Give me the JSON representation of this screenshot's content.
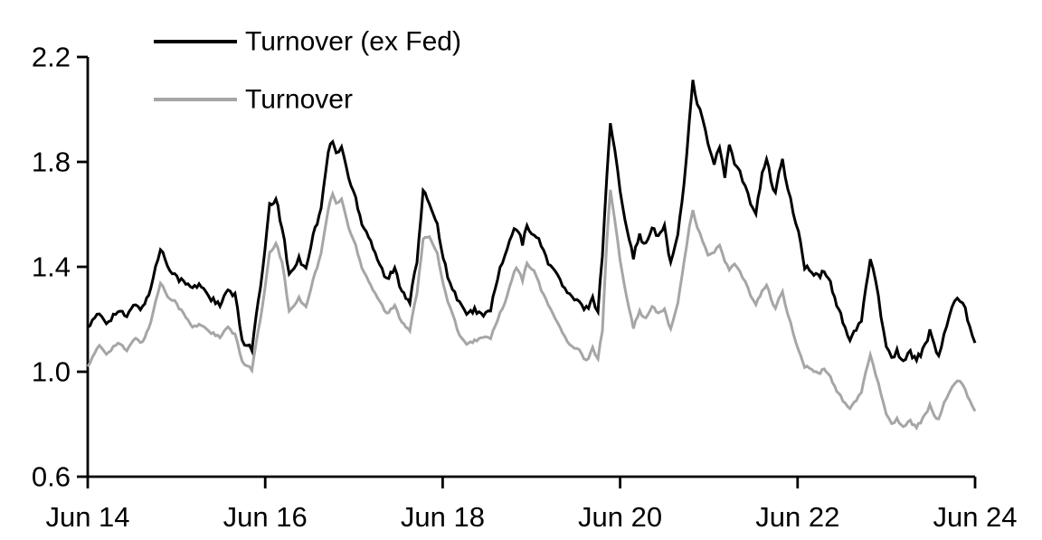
{
  "chart_data": {
    "type": "line",
    "title": "",
    "background_color": "#ffffff",
    "axis_color": "#000000",
    "grid": false,
    "legend_position": "top-left-inside",
    "legend": [
      {
        "label": "Turnover (ex Fed)",
        "color": "#000000"
      },
      {
        "label": "Turnover",
        "color": "#a6a6a6"
      }
    ],
    "x_axis": {
      "range": [
        2014.45,
        2024.45
      ],
      "tick_positions": [
        2014.45,
        2016.45,
        2018.45,
        2020.45,
        2022.45,
        2024.45
      ],
      "tick_labels": [
        "Jun 14",
        "Jun 16",
        "Jun 18",
        "Jun 20",
        "Jun 22",
        "Jun 24"
      ]
    },
    "y_axis": {
      "range": [
        0.6,
        2.2
      ],
      "tick_values": [
        0.6,
        1.0,
        1.4,
        1.8,
        2.2
      ],
      "tick_labels": [
        "0.6",
        "1.0",
        "1.4",
        "1.8",
        "2.2"
      ]
    },
    "x": [
      2014.45,
      2014.58,
      2014.66,
      2014.79,
      2014.89,
      2014.99,
      2015.07,
      2015.16,
      2015.27,
      2015.35,
      2015.43,
      2015.53,
      2015.63,
      2015.73,
      2015.84,
      2015.94,
      2016.03,
      2016.11,
      2016.19,
      2016.3,
      2016.42,
      2016.5,
      2016.57,
      2016.64,
      2016.72,
      2016.83,
      2016.91,
      2016.99,
      2017.08,
      2017.16,
      2017.21,
      2017.25,
      2017.31,
      2017.39,
      2017.47,
      2017.54,
      2017.64,
      2017.74,
      2017.82,
      2017.91,
      2017.99,
      2018.08,
      2018.16,
      2018.23,
      2018.3,
      2018.39,
      2018.48,
      2018.56,
      2018.64,
      2018.72,
      2018.81,
      2018.91,
      2018.99,
      2019.07,
      2019.15,
      2019.23,
      2019.28,
      2019.35,
      2019.4,
      2019.48,
      2019.56,
      2019.64,
      2019.72,
      2019.8,
      2019.88,
      2019.99,
      2020.07,
      2020.14,
      2020.2,
      2020.25,
      2020.3,
      2020.34,
      2020.39,
      2020.45,
      2020.53,
      2020.6,
      2020.67,
      2020.74,
      2020.81,
      2020.88,
      2020.95,
      2021.02,
      2021.1,
      2021.17,
      2021.23,
      2021.27,
      2021.32,
      2021.38,
      2021.44,
      2021.51,
      2021.57,
      2021.63,
      2021.68,
      2021.74,
      2021.8,
      2021.86,
      2021.92,
      2021.98,
      2022.05,
      2022.1,
      2022.15,
      2022.2,
      2022.24,
      2022.28,
      2022.34,
      2022.4,
      2022.46,
      2022.53,
      2022.61,
      2022.68,
      2022.75,
      2022.82,
      2022.89,
      2022.96,
      2023.04,
      2023.11,
      2023.17,
      2023.22,
      2023.27,
      2023.33,
      2023.39,
      2023.45,
      2023.51,
      2023.57,
      2023.64,
      2023.72,
      2023.79,
      2023.86,
      2023.94,
      2023.99,
      2024.04,
      2024.1,
      2024.16,
      2024.22,
      2024.28,
      2024.34,
      2024.39,
      2024.45
    ],
    "series": [
      {
        "name": "Turnover (ex Fed)",
        "color": "#000000",
        "values": [
          1.17,
          1.22,
          1.19,
          1.23,
          1.21,
          1.26,
          1.24,
          1.32,
          1.47,
          1.41,
          1.37,
          1.34,
          1.32,
          1.33,
          1.28,
          1.25,
          1.31,
          1.29,
          1.12,
          1.09,
          1.38,
          1.63,
          1.66,
          1.55,
          1.37,
          1.43,
          1.4,
          1.52,
          1.62,
          1.84,
          1.88,
          1.83,
          1.86,
          1.74,
          1.66,
          1.57,
          1.5,
          1.41,
          1.35,
          1.39,
          1.31,
          1.27,
          1.42,
          1.68,
          1.65,
          1.56,
          1.4,
          1.31,
          1.27,
          1.21,
          1.24,
          1.21,
          1.24,
          1.36,
          1.44,
          1.52,
          1.55,
          1.49,
          1.55,
          1.53,
          1.48,
          1.42,
          1.38,
          1.33,
          1.29,
          1.26,
          1.24,
          1.28,
          1.23,
          1.45,
          1.75,
          1.94,
          1.85,
          1.68,
          1.55,
          1.44,
          1.52,
          1.48,
          1.55,
          1.51,
          1.56,
          1.41,
          1.52,
          1.72,
          1.95,
          2.12,
          2.02,
          1.97,
          1.86,
          1.8,
          1.85,
          1.74,
          1.87,
          1.79,
          1.76,
          1.7,
          1.64,
          1.61,
          1.76,
          1.81,
          1.73,
          1.68,
          1.76,
          1.8,
          1.7,
          1.61,
          1.53,
          1.4,
          1.38,
          1.36,
          1.38,
          1.34,
          1.26,
          1.19,
          1.12,
          1.16,
          1.19,
          1.32,
          1.44,
          1.35,
          1.22,
          1.1,
          1.05,
          1.08,
          1.04,
          1.07,
          1.05,
          1.08,
          1.15,
          1.1,
          1.06,
          1.14,
          1.21,
          1.26,
          1.28,
          1.24,
          1.17,
          1.11
        ]
      },
      {
        "name": "Turnover",
        "color": "#a6a6a6",
        "values": [
          1.02,
          1.1,
          1.07,
          1.11,
          1.08,
          1.13,
          1.11,
          1.19,
          1.34,
          1.29,
          1.27,
          1.22,
          1.17,
          1.18,
          1.15,
          1.13,
          1.17,
          1.14,
          1.04,
          1.01,
          1.25,
          1.45,
          1.49,
          1.42,
          1.23,
          1.28,
          1.25,
          1.35,
          1.45,
          1.62,
          1.68,
          1.64,
          1.66,
          1.55,
          1.48,
          1.4,
          1.33,
          1.27,
          1.22,
          1.25,
          1.19,
          1.16,
          1.3,
          1.5,
          1.52,
          1.45,
          1.3,
          1.22,
          1.14,
          1.1,
          1.12,
          1.13,
          1.13,
          1.2,
          1.26,
          1.35,
          1.4,
          1.35,
          1.41,
          1.39,
          1.31,
          1.26,
          1.2,
          1.15,
          1.1,
          1.08,
          1.04,
          1.09,
          1.05,
          1.16,
          1.5,
          1.69,
          1.58,
          1.42,
          1.28,
          1.17,
          1.23,
          1.2,
          1.25,
          1.22,
          1.24,
          1.16,
          1.26,
          1.42,
          1.55,
          1.62,
          1.55,
          1.5,
          1.44,
          1.46,
          1.48,
          1.42,
          1.39,
          1.41,
          1.38,
          1.34,
          1.29,
          1.26,
          1.31,
          1.33,
          1.28,
          1.24,
          1.28,
          1.3,
          1.22,
          1.15,
          1.08,
          1.02,
          1.01,
          0.99,
          1.01,
          0.98,
          0.93,
          0.89,
          0.86,
          0.89,
          0.92,
          1.0,
          1.07,
          0.99,
          0.92,
          0.84,
          0.8,
          0.82,
          0.79,
          0.81,
          0.79,
          0.82,
          0.87,
          0.83,
          0.82,
          0.88,
          0.92,
          0.95,
          0.97,
          0.93,
          0.89,
          0.85
        ]
      }
    ]
  }
}
